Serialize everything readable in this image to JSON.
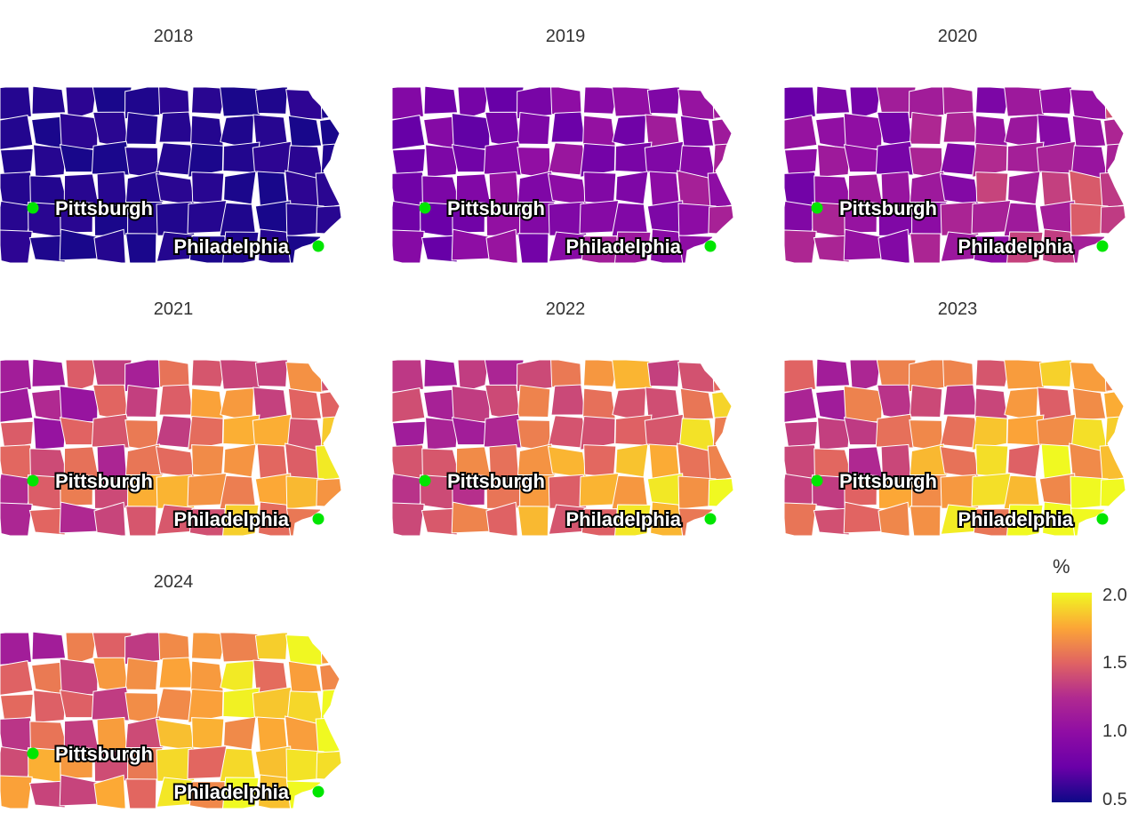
{
  "map": {
    "panels": [
      {
        "year": "2018",
        "level": 0.02
      },
      {
        "year": "2019",
        "level": 0.3
      },
      {
        "year": "2020",
        "level": 0.42
      },
      {
        "year": "2021",
        "level": 0.7
      },
      {
        "year": "2022",
        "level": 0.73
      },
      {
        "year": "2023",
        "level": 0.77
      },
      {
        "year": "2024",
        "level": 0.8
      }
    ],
    "cities": [
      {
        "name": "Pittsburgh"
      },
      {
        "name": "Philadelphia"
      }
    ],
    "city_marker_color": "#00e600",
    "county_border_color": "#ffffff"
  },
  "legend": {
    "title": "%",
    "ticks": [
      "2.0",
      "1.5",
      "1.0",
      "0.5"
    ],
    "min": 0.5,
    "max": 2.0,
    "palette": "plasma",
    "colors": [
      "#0d0887",
      "#6a00a8",
      "#8f0da4",
      "#b12a90",
      "#e16462",
      "#fca636",
      "#f0f921"
    ]
  }
}
